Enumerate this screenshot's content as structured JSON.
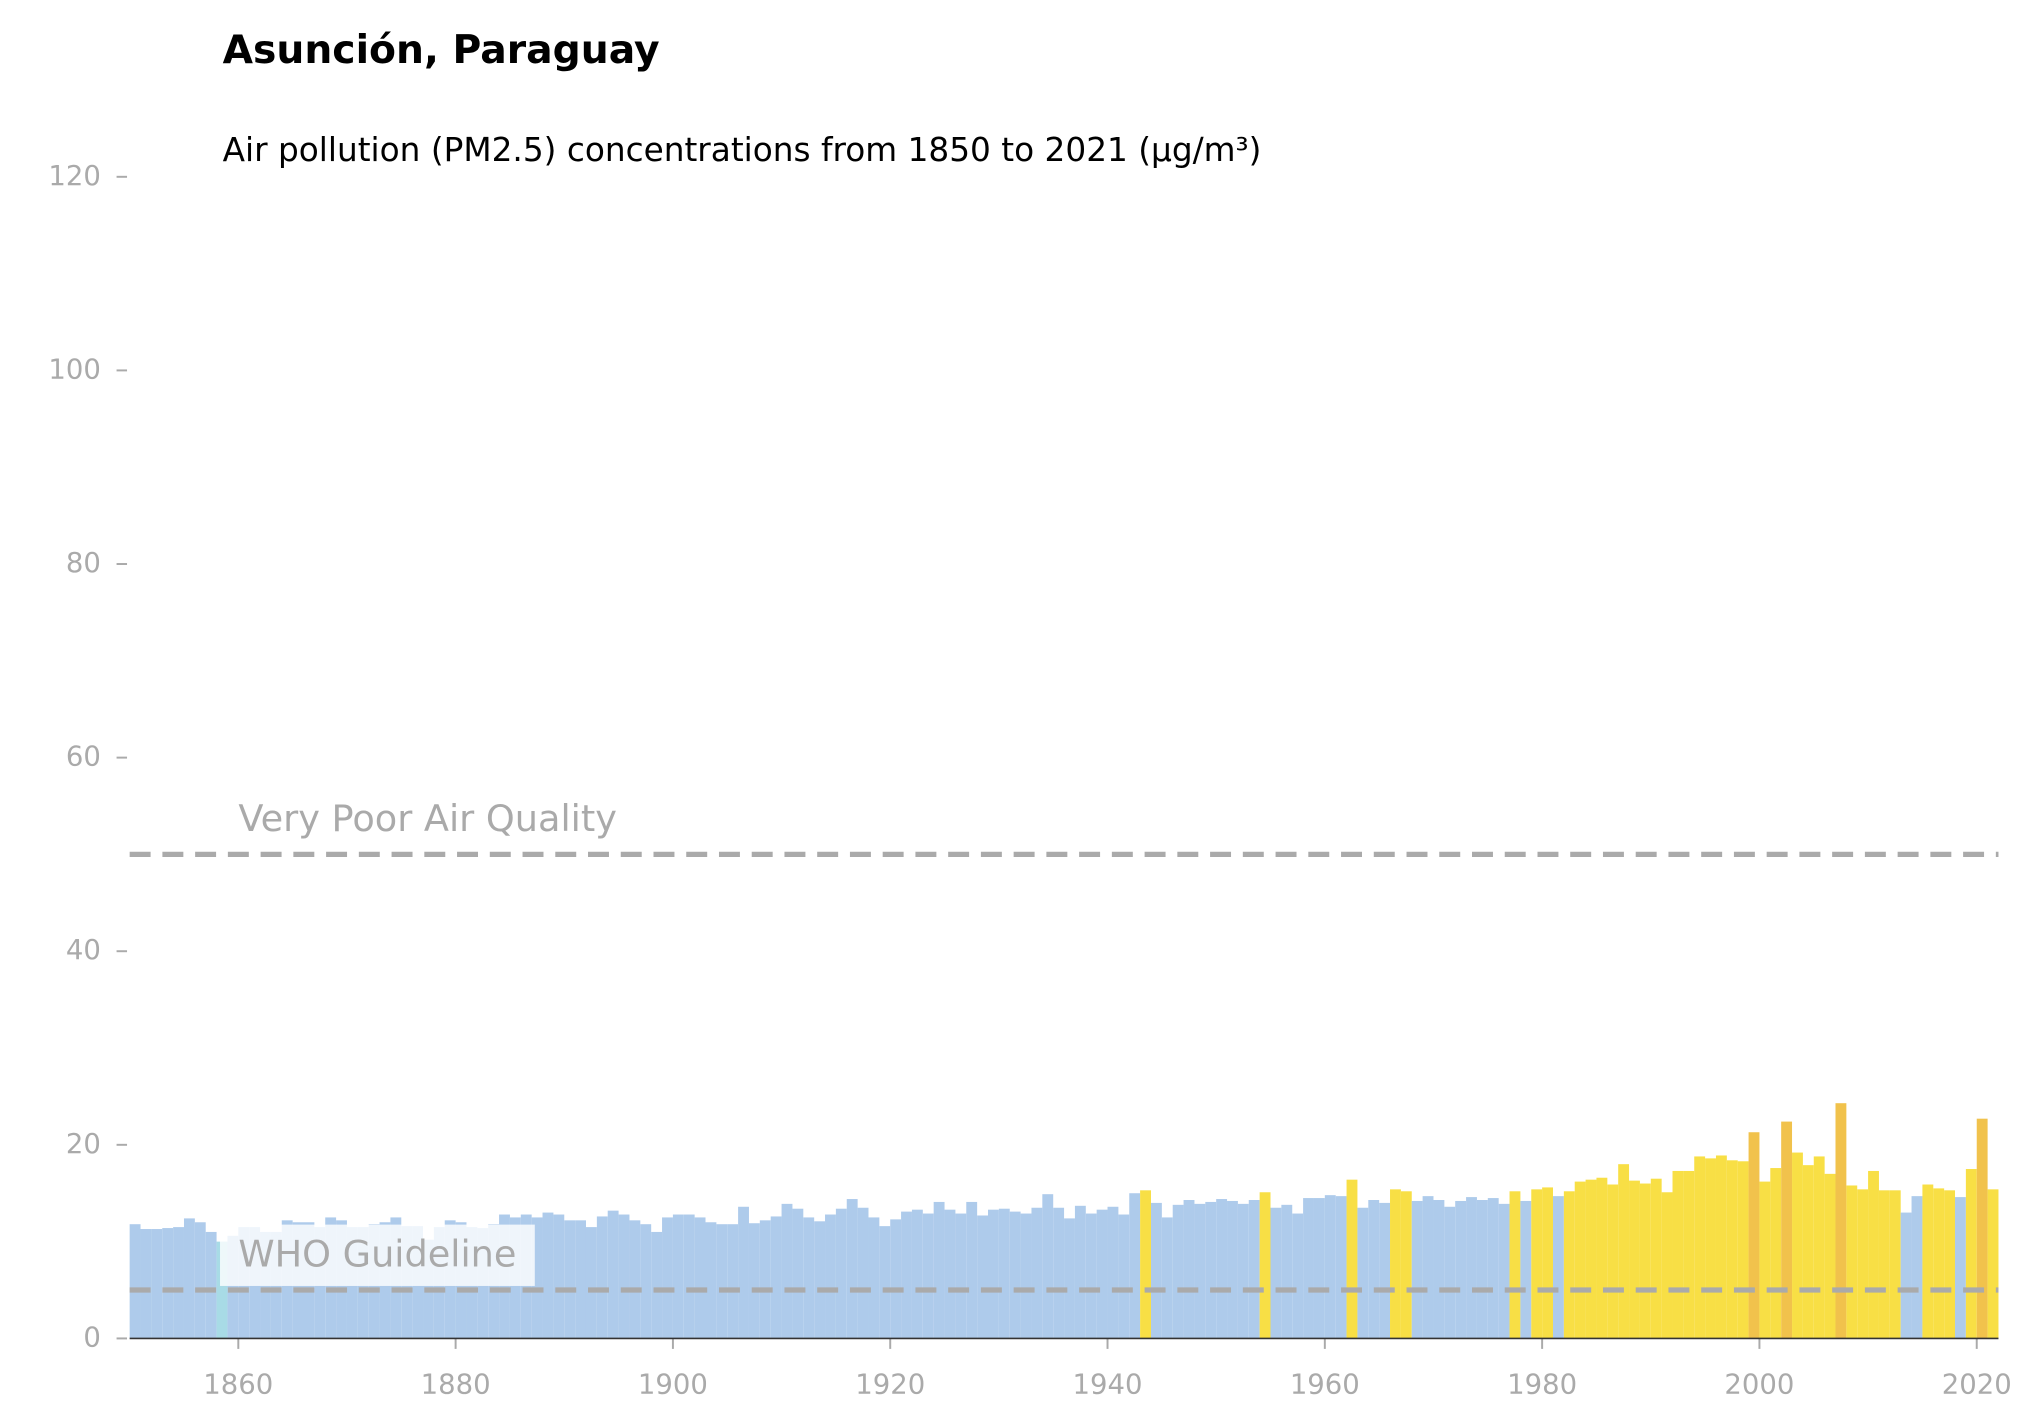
{
  "chart_data": {
    "type": "bar",
    "title": "Asunción, Paraguay",
    "subtitle": "Air pollution (PM2.5) concentrations from 1850 to 2021 (µg/m³)",
    "x": [
      1850,
      1851,
      1852,
      1853,
      1854,
      1855,
      1856,
      1857,
      1858,
      1859,
      1860,
      1861,
      1862,
      1863,
      1864,
      1865,
      1866,
      1867,
      1868,
      1869,
      1870,
      1871,
      1872,
      1873,
      1874,
      1875,
      1876,
      1877,
      1878,
      1879,
      1880,
      1881,
      1882,
      1883,
      1884,
      1885,
      1886,
      1887,
      1888,
      1889,
      1890,
      1891,
      1892,
      1893,
      1894,
      1895,
      1896,
      1897,
      1898,
      1899,
      1900,
      1901,
      1902,
      1903,
      1904,
      1905,
      1906,
      1907,
      1908,
      1909,
      1910,
      1911,
      1912,
      1913,
      1914,
      1915,
      1916,
      1917,
      1918,
      1919,
      1920,
      1921,
      1922,
      1923,
      1924,
      1925,
      1926,
      1927,
      1928,
      1929,
      1930,
      1931,
      1932,
      1933,
      1934,
      1935,
      1936,
      1937,
      1938,
      1939,
      1940,
      1941,
      1942,
      1943,
      1944,
      1945,
      1946,
      1947,
      1948,
      1949,
      1950,
      1951,
      1952,
      1953,
      1954,
      1955,
      1956,
      1957,
      1958,
      1959,
      1960,
      1961,
      1962,
      1963,
      1964,
      1965,
      1966,
      1967,
      1968,
      1969,
      1970,
      1971,
      1972,
      1973,
      1974,
      1975,
      1976,
      1977,
      1978,
      1979,
      1980,
      1981,
      1982,
      1983,
      1984,
      1985,
      1986,
      1987,
      1988,
      1989,
      1990,
      1991,
      1992,
      1993,
      1994,
      1995,
      1996,
      1997,
      1998,
      1999,
      2000,
      2001,
      2002,
      2003,
      2004,
      2005,
      2006,
      2007,
      2008,
      2009,
      2010,
      2011,
      2012,
      2013,
      2014,
      2015,
      2016,
      2017,
      2018,
      2019,
      2020,
      2021
    ],
    "values": [
      11.8,
      11.3,
      11.3,
      11.4,
      11.5,
      12.4,
      12.0,
      11.0,
      10.0,
      10.6,
      11.5,
      11.5,
      11.0,
      11.0,
      12.2,
      12.0,
      12.0,
      11.5,
      12.5,
      12.2,
      11.5,
      11.5,
      11.8,
      12.0,
      12.5,
      11.6,
      11.6,
      10.2,
      11.5,
      12.2,
      12.0,
      11.5,
      11.4,
      11.8,
      12.8,
      12.5,
      12.8,
      12.5,
      13.0,
      12.8,
      12.2,
      12.2,
      11.5,
      12.6,
      13.2,
      12.8,
      12.2,
      11.8,
      11.0,
      12.5,
      12.8,
      12.8,
      12.5,
      12.0,
      11.8,
      11.8,
      13.6,
      11.9,
      12.2,
      12.6,
      13.9,
      13.4,
      12.5,
      12.1,
      12.8,
      13.4,
      14.4,
      13.5,
      12.5,
      11.6,
      12.3,
      13.1,
      13.3,
      12.9,
      14.1,
      13.3,
      12.9,
      14.1,
      12.7,
      13.3,
      13.4,
      13.1,
      12.9,
      13.5,
      14.9,
      13.5,
      12.4,
      13.7,
      12.9,
      13.3,
      13.6,
      12.8,
      15.0,
      15.3,
      14.0,
      12.5,
      13.8,
      14.3,
      13.9,
      14.1,
      14.4,
      14.2,
      13.9,
      14.3,
      15.1,
      13.5,
      13.8,
      12.9,
      14.5,
      14.5,
      14.8,
      14.7,
      16.4,
      13.5,
      14.3,
      14.0,
      15.4,
      15.2,
      14.2,
      14.7,
      14.3,
      13.6,
      14.2,
      14.6,
      14.3,
      14.5,
      13.9,
      15.2,
      14.2,
      15.4,
      15.6,
      14.7,
      15.2,
      16.2,
      16.4,
      16.6,
      15.9,
      18.0,
      16.3,
      16.0,
      16.5,
      15.1,
      17.3,
      17.3,
      18.8,
      18.6,
      18.9,
      18.4,
      18.3,
      21.3,
      16.2,
      17.6,
      22.4,
      19.2,
      17.9,
      18.8,
      17.0,
      24.3,
      15.8,
      15.4,
      17.3,
      15.3,
      15.3,
      13.0,
      14.7,
      15.9,
      15.5,
      15.3,
      14.6,
      17.5,
      22.7,
      15.4
    ],
    "colors": [
      "#aecbeb",
      "#aecbeb",
      "#aecbeb",
      "#aecbeb",
      "#aecbeb",
      "#aecbeb",
      "#aecbeb",
      "#aecbeb",
      "#a8dbe6",
      "#aecbeb",
      "#aecbeb",
      "#aecbeb",
      "#aecbeb",
      "#aecbeb",
      "#aecbeb",
      "#aecbeb",
      "#aecbeb",
      "#aecbeb",
      "#aecbeb",
      "#aecbeb",
      "#aecbeb",
      "#aecbeb",
      "#aecbeb",
      "#aecbeb",
      "#aecbeb",
      "#aecbeb",
      "#aecbeb",
      "#aecbeb",
      "#aecbeb",
      "#aecbeb",
      "#aecbeb",
      "#aecbeb",
      "#aecbeb",
      "#aecbeb",
      "#aecbeb",
      "#aecbeb",
      "#aecbeb",
      "#aecbeb",
      "#aecbeb",
      "#aecbeb",
      "#aecbeb",
      "#aecbeb",
      "#aecbeb",
      "#aecbeb",
      "#aecbeb",
      "#aecbeb",
      "#aecbeb",
      "#aecbeb",
      "#aecbeb",
      "#aecbeb",
      "#aecbeb",
      "#aecbeb",
      "#aecbeb",
      "#aecbeb",
      "#aecbeb",
      "#aecbeb",
      "#aecbeb",
      "#aecbeb",
      "#aecbeb",
      "#aecbeb",
      "#aecbeb",
      "#aecbeb",
      "#aecbeb",
      "#aecbeb",
      "#aecbeb",
      "#aecbeb",
      "#aecbeb",
      "#aecbeb",
      "#aecbeb",
      "#aecbeb",
      "#aecbeb",
      "#aecbeb",
      "#aecbeb",
      "#aecbeb",
      "#aecbeb",
      "#aecbeb",
      "#aecbeb",
      "#aecbeb",
      "#aecbeb",
      "#aecbeb",
      "#aecbeb",
      "#aecbeb",
      "#aecbeb",
      "#aecbeb",
      "#aecbeb",
      "#aecbeb",
      "#aecbeb",
      "#aecbeb",
      "#aecbeb",
      "#aecbeb",
      "#aecbeb",
      "#aecbeb",
      "#aecbeb",
      "#f8df45",
      "#aecbeb",
      "#aecbeb",
      "#aecbeb",
      "#aecbeb",
      "#aecbeb",
      "#aecbeb",
      "#aecbeb",
      "#aecbeb",
      "#aecbeb",
      "#aecbeb",
      "#f8df45",
      "#aecbeb",
      "#aecbeb",
      "#aecbeb",
      "#aecbeb",
      "#aecbeb",
      "#aecbeb",
      "#aecbeb",
      "#f8df45",
      "#aecbeb",
      "#aecbeb",
      "#aecbeb",
      "#f8df45",
      "#f8df45",
      "#aecbeb",
      "#aecbeb",
      "#aecbeb",
      "#aecbeb",
      "#aecbeb",
      "#aecbeb",
      "#aecbeb",
      "#aecbeb",
      "#aecbeb",
      "#f8df45",
      "#aecbeb",
      "#f8df45",
      "#f8df45",
      "#aecbeb",
      "#f8df45",
      "#f8df45",
      "#f8df45",
      "#f8df45",
      "#f8df45",
      "#f8df45",
      "#f8df45",
      "#f8df45",
      "#f8df45",
      "#f8df45",
      "#f8df45",
      "#f8df45",
      "#f8df45",
      "#f8df45",
      "#f8df45",
      "#f8df45",
      "#f8df45",
      "#f1c24c",
      "#f8df45",
      "#f8df45",
      "#f1c24c",
      "#f8df45",
      "#f8df45",
      "#f8df45",
      "#f8df45",
      "#f1c24c",
      "#f8df45",
      "#f8df45",
      "#f8df45",
      "#f8df45",
      "#f8df45",
      "#aecbeb",
      "#aecbeb",
      "#f8df45",
      "#f8df45",
      "#f8df45",
      "#aecbeb",
      "#f8df45",
      "#f1c24c",
      "#f8df45"
    ],
    "reference_lines": [
      {
        "value": 50,
        "label": "Very Poor Air Quality"
      },
      {
        "value": 5,
        "label": "WHO Guideline"
      }
    ],
    "xlim": [
      1850,
      2022
    ],
    "xticks": [
      1860,
      1880,
      1900,
      1920,
      1940,
      1960,
      1980,
      2000,
      2020
    ],
    "ylim": [
      0,
      120
    ],
    "yticks": [
      0,
      20,
      40,
      60,
      80,
      100,
      120
    ]
  }
}
